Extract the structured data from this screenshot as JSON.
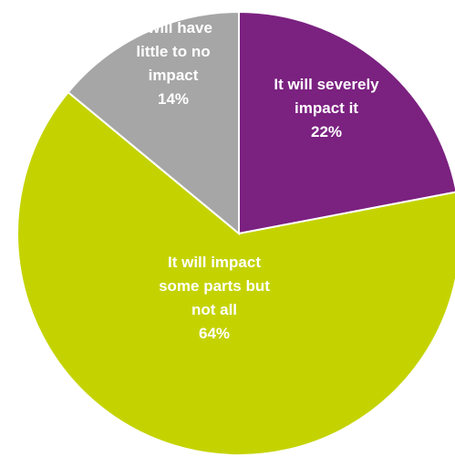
{
  "chart_data": {
    "type": "pie",
    "title": "",
    "start_angle_deg": 0,
    "direction": "clockwise",
    "slices": [
      {
        "label_lines": [
          "It will severely",
          "impact it",
          "22%"
        ],
        "value": 22,
        "color": "#7b2180"
      },
      {
        "label_lines": [
          "It will impact",
          "some parts but",
          "not all",
          "64%"
        ],
        "value": 64,
        "color": "#c4d300"
      },
      {
        "label_lines": [
          "It will have",
          "little to no",
          "impact",
          "14%"
        ],
        "value": 14,
        "color": "#a6a6a6"
      }
    ]
  }
}
